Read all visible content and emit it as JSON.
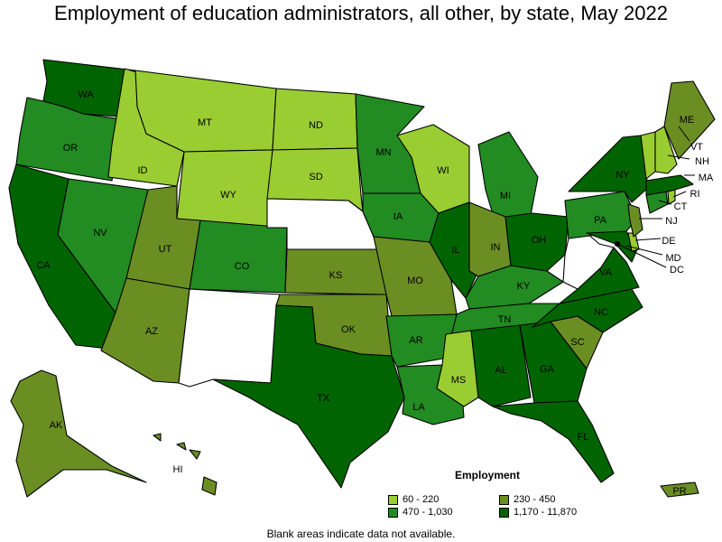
{
  "title": "Employment of education administrators, all other, by state, May 2022",
  "legend": {
    "title": "Employment",
    "items": [
      {
        "label": "60 - 220",
        "color": "#9acd32"
      },
      {
        "label": "230 - 450",
        "color": "#6b8e23"
      },
      {
        "label": "470 - 1,030",
        "color": "#228b22"
      },
      {
        "label": "1,170 - 11,870",
        "color": "#006400"
      }
    ]
  },
  "footnote": "Blank areas indicate data not available.",
  "states": {
    "WA": {
      "label": "WA",
      "class": 3
    },
    "OR": {
      "label": "OR",
      "class": 2
    },
    "CA": {
      "label": "CA",
      "class": 3
    },
    "ID": {
      "label": "ID",
      "class": 0
    },
    "NV": {
      "label": "NV",
      "class": 2
    },
    "MT": {
      "label": "MT",
      "class": 0
    },
    "WY": {
      "label": "WY",
      "class": 0
    },
    "UT": {
      "label": "UT",
      "class": 1
    },
    "AZ": {
      "label": "AZ",
      "class": 1
    },
    "CO": {
      "label": "CO",
      "class": 2
    },
    "NM": {
      "label": "",
      "class": -1
    },
    "ND": {
      "label": "ND",
      "class": 0
    },
    "SD": {
      "label": "SD",
      "class": 0
    },
    "NE": {
      "label": "",
      "class": -1
    },
    "KS": {
      "label": "KS",
      "class": 1
    },
    "OK": {
      "label": "OK",
      "class": 1
    },
    "TX": {
      "label": "TX",
      "class": 3
    },
    "MN": {
      "label": "MN",
      "class": 2
    },
    "IA": {
      "label": "IA",
      "class": 2
    },
    "MO": {
      "label": "MO",
      "class": 1
    },
    "AR": {
      "label": "AR",
      "class": 2
    },
    "LA": {
      "label": "LA",
      "class": 2
    },
    "WI": {
      "label": "WI",
      "class": 0
    },
    "IL": {
      "label": "IL",
      "class": 3
    },
    "MI": {
      "label": "MI",
      "class": 2
    },
    "IN": {
      "label": "IN",
      "class": 1
    },
    "OH": {
      "label": "OH",
      "class": 3
    },
    "KY": {
      "label": "KY",
      "class": 2
    },
    "TN": {
      "label": "TN",
      "class": 2
    },
    "MS": {
      "label": "MS",
      "class": 0
    },
    "AL": {
      "label": "AL",
      "class": 3
    },
    "GA": {
      "label": "GA",
      "class": 3
    },
    "FL": {
      "label": "FL",
      "class": 3
    },
    "SC": {
      "label": "SC",
      "class": 1
    },
    "NC": {
      "label": "NC",
      "class": 3
    },
    "VA": {
      "label": "VA",
      "class": 3
    },
    "WV": {
      "label": "",
      "class": -1
    },
    "PA": {
      "label": "PA",
      "class": 2
    },
    "NY": {
      "label": "NY",
      "class": 3
    },
    "MD": {
      "label": "MD",
      "class": 3
    },
    "DE": {
      "label": "DE",
      "class": 0
    },
    "NJ": {
      "label": "NJ",
      "class": 1
    },
    "CT": {
      "label": "CT",
      "class": 2
    },
    "RI": {
      "label": "RI",
      "class": 0
    },
    "MA": {
      "label": "MA",
      "class": 3
    },
    "VT": {
      "label": "VT",
      "class": 0
    },
    "NH": {
      "label": "NH",
      "class": 0
    },
    "ME": {
      "label": "ME",
      "class": 1
    },
    "DC": {
      "label": "DC",
      "class": 3
    },
    "AK": {
      "label": "AK",
      "class": 1
    },
    "HI": {
      "label": "HI",
      "class": 1
    },
    "PR": {
      "label": "PR",
      "class": 1
    }
  }
}
